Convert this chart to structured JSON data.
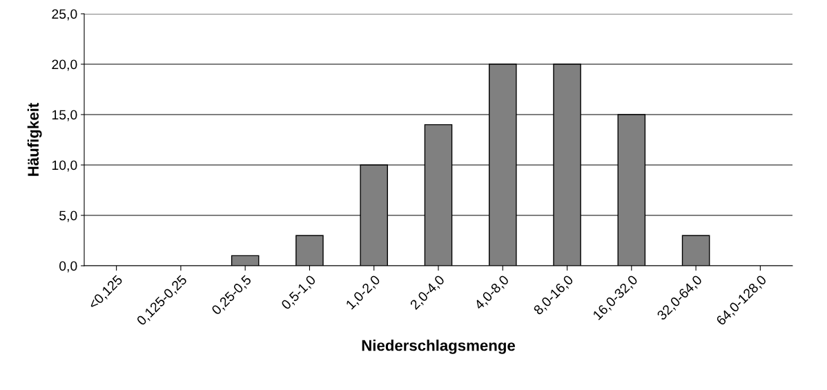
{
  "chart_data": {
    "type": "bar",
    "xlabel": "Niederschlagsmenge",
    "ylabel": "Häufigkeit",
    "categories": [
      "<0,125",
      "0,125-0,25",
      "0,25-0,5",
      "0,5-1,0",
      "1,0-2,0",
      "2,0-4,0",
      "4,0-8,0",
      "8,0-16,0",
      "16,0-32,0",
      "32,0-64,0",
      "64,0-128,0"
    ],
    "values": [
      0,
      0,
      1,
      3,
      10,
      14,
      20,
      20,
      15,
      3,
      0
    ],
    "color": "#808080",
    "ylim": [
      0,
      25
    ],
    "yticks": [
      {
        "value": 0,
        "label": "0,0"
      },
      {
        "value": 5,
        "label": "5,0"
      },
      {
        "value": 10,
        "label": "10,0"
      },
      {
        "value": 15,
        "label": "15,0"
      },
      {
        "value": 20,
        "label": "20,0"
      },
      {
        "value": 25,
        "label": "25,0"
      }
    ],
    "grid": "y"
  }
}
